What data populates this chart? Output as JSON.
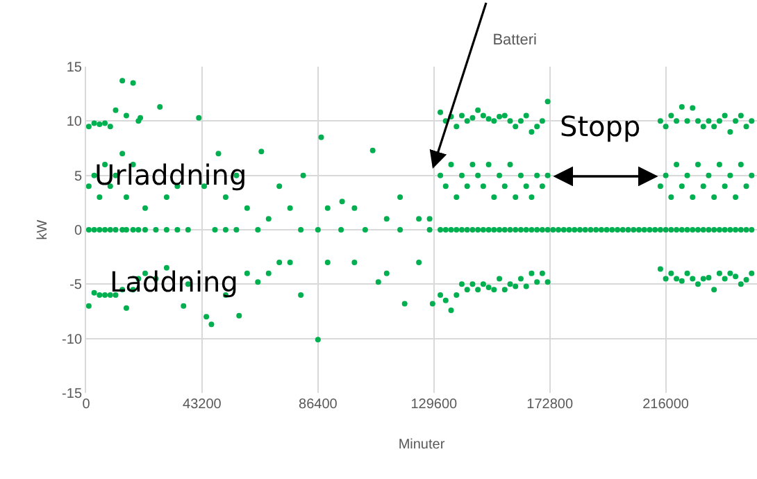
{
  "chart_data": {
    "type": "scatter",
    "title": "Batteri",
    "xlabel": "Minuter",
    "ylabel": "kW",
    "xlim": [
      0,
      250000
    ],
    "xticks": [
      0,
      43200,
      86400,
      129600,
      172800,
      216000
    ],
    "ylim": [
      -15,
      15
    ],
    "yticks": [
      -15,
      -10,
      -5,
      0,
      5,
      10,
      15
    ],
    "grid": true,
    "marker": "circle",
    "annotations": [
      "Urladdning",
      "Stopp",
      "Laddning"
    ],
    "series": [
      {
        "color": "#00b050",
        "x": [
          1000,
          1000,
          1000,
          1000,
          3000,
          3000,
          3000,
          3000,
          5000,
          5000,
          5000,
          5000,
          7000,
          7000,
          7000,
          7000,
          9000,
          9000,
          9000,
          9000,
          11000,
          11000,
          11000,
          11000,
          13500,
          13500,
          13500,
          13500,
          15000,
          15000,
          15000,
          15000,
          17500,
          17500,
          17500,
          17500,
          19500,
          19500,
          19500,
          20200,
          22000,
          22000,
          22000,
          27500,
          26000,
          26000,
          30000,
          30000,
          30000,
          36300,
          34000,
          34000,
          42000,
          38000,
          38000,
          44800,
          44000,
          46700,
          49300,
          48000,
          52000,
          52000,
          52000,
          57000,
          56000,
          56000,
          60000,
          60000,
          65300,
          64000,
          64000,
          68000,
          68000,
          72000,
          72000,
          76000,
          76000,
          80900,
          80000,
          80000,
          87600,
          86400,
          86400,
          90000,
          90000,
          95400,
          95000,
          100000,
          100000,
          106800,
          104000,
          108900,
          112000,
          112000,
          118700,
          117000,
          117000,
          124000,
          124000,
          129100,
          128000,
          128000,
          132000,
          132000,
          132000,
          132000,
          134000,
          134000,
          134000,
          134000,
          136000,
          136000,
          136000,
          136000,
          138000,
          138000,
          138000,
          138000,
          140000,
          140000,
          140000,
          140000,
          142000,
          142000,
          142000,
          142000,
          144000,
          144000,
          144000,
          144000,
          146000,
          146000,
          146000,
          146000,
          148000,
          148000,
          148000,
          148000,
          150000,
          150000,
          150000,
          150000,
          152000,
          152000,
          152000,
          152000,
          154000,
          154000,
          154000,
          154000,
          156000,
          156000,
          156000,
          156000,
          158000,
          158000,
          158000,
          158000,
          160000,
          160000,
          160000,
          160000,
          162000,
          162000,
          162000,
          162000,
          164000,
          164000,
          164000,
          164000,
          166000,
          166000,
          166000,
          166000,
          168000,
          168000,
          168000,
          168000,
          170000,
          170000,
          170000,
          170000,
          172000,
          172000,
          172000,
          172000,
          174000,
          176000,
          178000,
          180000,
          182000,
          184000,
          186000,
          188000,
          190000,
          192000,
          194000,
          196000,
          198000,
          200000,
          202000,
          204000,
          206000,
          208000,
          210000,
          212000,
          214000,
          214000,
          214000,
          214000,
          216000,
          216000,
          216000,
          216000,
          218000,
          218000,
          218000,
          218000,
          220000,
          220000,
          220000,
          220000,
          222000,
          222000,
          222000,
          222000,
          224000,
          224000,
          224000,
          224000,
          226000,
          226000,
          226000,
          226000,
          228000,
          228000,
          228000,
          228000,
          230000,
          230000,
          230000,
          230000,
          232000,
          232000,
          232000,
          232000,
          234000,
          234000,
          234000,
          234000,
          236000,
          236000,
          236000,
          236000,
          238000,
          238000,
          238000,
          238000,
          240000,
          240000,
          240000,
          240000,
          242000,
          242000,
          242000,
          242000,
          244000,
          244000,
          244000,
          244000,
          246000,
          246000,
          246000,
          246000,
          248000,
          248000,
          248000,
          248000
        ],
        "values": [
          9.5,
          4,
          0,
          -7,
          9.8,
          5,
          0,
          -5.8,
          9.7,
          3,
          0,
          -6,
          9.8,
          6,
          0,
          -6,
          9.5,
          4,
          0,
          -6,
          11,
          5,
          0,
          -6,
          13.7,
          7,
          0,
          -5.5,
          10.5,
          3,
          0,
          -7.2,
          13.5,
          6,
          0,
          -5.5,
          10,
          0,
          -4.5,
          10.3,
          2,
          0,
          -4,
          11.3,
          0,
          -4.5,
          3,
          0,
          -3.5,
          -7,
          4,
          0,
          10.3,
          0,
          -5,
          -8,
          4,
          -8.7,
          7,
          0,
          3,
          0,
          -6,
          -7.9,
          5,
          0,
          2,
          -4,
          7.2,
          0,
          -4.8,
          1,
          -4,
          4,
          -3,
          2,
          -3,
          5,
          0,
          -6,
          8.5,
          0,
          -10.1,
          2,
          -3,
          2.6,
          0,
          2,
          -3,
          7.3,
          0,
          -4.8,
          1,
          -4,
          -6.8,
          3,
          0,
          1,
          -3,
          -6.8,
          1,
          0,
          10.8,
          5,
          0,
          -6,
          10,
          4,
          0,
          -6.5,
          10.4,
          6,
          0,
          -7.4,
          9.5,
          3,
          0,
          -6,
          10.5,
          5,
          0,
          -5,
          10,
          4,
          0,
          -5.5,
          10.3,
          6,
          0,
          -5,
          11,
          5,
          0,
          -5.5,
          10.5,
          4,
          0,
          -5,
          10.2,
          6,
          0,
          -5.3,
          10,
          3,
          0,
          -5.5,
          10.4,
          5,
          0,
          -4.5,
          10.5,
          4,
          0,
          -5.5,
          10,
          6,
          0,
          -5,
          9.5,
          3,
          0,
          -5.2,
          10,
          5,
          0,
          -4.5,
          10.5,
          4,
          0,
          -5.2,
          9,
          3,
          0,
          -4,
          9.5,
          5,
          0,
          -4.8,
          10,
          4,
          0,
          -4,
          11.8,
          5,
          0,
          -4.8,
          0,
          0,
          0,
          0,
          0,
          0,
          0,
          0,
          0,
          0,
          0,
          0,
          0,
          0,
          0,
          0,
          0,
          0,
          0,
          0,
          10,
          4,
          0,
          -3.6,
          9.5,
          5,
          0,
          -4.5,
          10.5,
          3,
          0,
          -4,
          10,
          6,
          0,
          -4.5,
          11.3,
          4,
          0,
          -4.7,
          10,
          5,
          0,
          -4,
          11.2,
          3,
          0,
          -4.5,
          10,
          6,
          0,
          -5,
          9.5,
          4,
          0,
          -4.5,
          10,
          5,
          0,
          -4.4,
          9.5,
          3,
          0,
          -5.5,
          10,
          6,
          0,
          -4,
          10.5,
          4,
          0,
          -4.5,
          9,
          5,
          0,
          -4,
          10,
          3,
          0,
          -4.3,
          10.5,
          6,
          0,
          -5,
          9.5,
          4,
          0,
          -4.6,
          10,
          5,
          0,
          -4
        ]
      }
    ]
  }
}
